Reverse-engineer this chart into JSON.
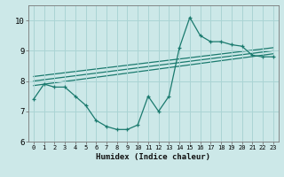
{
  "xlabel": "Humidex (Indice chaleur)",
  "ylabel": "",
  "bg_color": "#cce8e8",
  "line_color": "#1a7a6e",
  "grid_color": "#aad4d4",
  "series1_x": [
    0,
    1,
    2,
    3,
    4,
    5,
    6,
    7,
    8,
    9,
    10,
    11,
    12,
    13,
    14,
    15,
    16,
    17,
    18,
    19,
    20,
    21,
    22,
    23
  ],
  "series1_y": [
    7.4,
    7.9,
    7.8,
    7.8,
    7.5,
    7.2,
    6.7,
    6.5,
    6.4,
    6.4,
    6.55,
    7.5,
    7.0,
    7.5,
    9.1,
    10.1,
    9.5,
    9.3,
    9.3,
    9.2,
    9.15,
    8.85,
    8.8,
    8.8
  ],
  "series2_x": [
    0,
    23
  ],
  "series2_y": [
    7.85,
    8.9
  ],
  "series3_x": [
    0,
    23
  ],
  "series3_y": [
    8.0,
    9.0
  ],
  "series4_x": [
    0,
    23
  ],
  "series4_y": [
    8.15,
    9.1
  ],
  "xlim": [
    -0.5,
    23.5
  ],
  "ylim": [
    6.0,
    10.5
  ],
  "xticks": [
    0,
    1,
    2,
    3,
    4,
    5,
    6,
    7,
    8,
    9,
    10,
    11,
    12,
    13,
    14,
    15,
    16,
    17,
    18,
    19,
    20,
    21,
    22,
    23
  ],
  "yticks": [
    6,
    7,
    8,
    9,
    10
  ],
  "xtick_fontsize": 5.0,
  "ytick_fontsize": 6.5,
  "xlabel_fontsize": 6.5
}
